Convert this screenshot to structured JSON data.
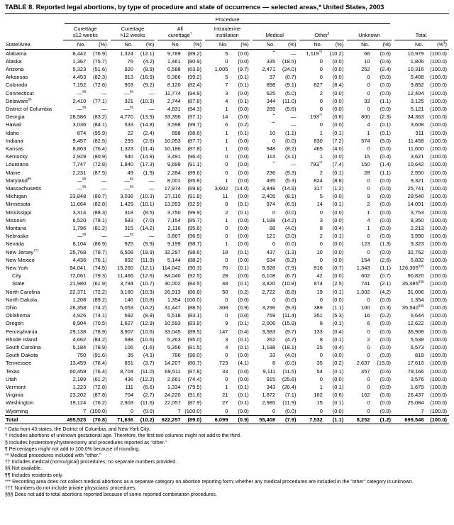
{
  "title": "TABLE 8. Reported legal abortions, by type of procedure and state of occurrence — selected areas,* United States, 2003",
  "header": {
    "procedure": "Procedure",
    "state_area": "State/Area",
    "groups": [
      {
        "label": "Curettage\n≤12 weeks",
        "no": "No.",
        "pct": "(%)"
      },
      {
        "label": "Curettage\n>12 weeks",
        "no": "No.",
        "pct": "(%)"
      },
      {
        "label": "All\ncurettage†",
        "no": "No.",
        "pct": "(%)"
      },
      {
        "label": "Intrauterine\ninstillation",
        "no": "No.",
        "pct": "(%)"
      },
      {
        "label": "Medical",
        "no": "No.",
        "pct": "(%)"
      },
      {
        "label": "Other§",
        "no": "No.",
        "pct": "(%)"
      },
      {
        "label": "Unknown",
        "no": "No.",
        "pct": "(%)"
      },
      {
        "label": "Total",
        "no": "No.",
        "pct": "(%¶)"
      }
    ]
  },
  "rows": [
    {
      "state": "Alabama",
      "c": [
        "8,442",
        "(76.9)",
        "1,324",
        "(12.1)",
        "9,789",
        "(89.2)",
        "5",
        "(0.0)",
        "**",
        "—",
        "1,119††",
        "(10.2)",
        "66",
        "(0.6)",
        "10,979",
        "(100.0)"
      ]
    },
    {
      "state": "Alaska",
      "c": [
        "1,367",
        "(75.7)",
        "76",
        "(4.2)",
        "1,461",
        "(80.9)",
        "0",
        "(0.0)",
        "335",
        "(18.5)",
        "0",
        "(0.0)",
        "10",
        "(0.6)",
        "1,806",
        "(100.0)"
      ]
    },
    {
      "state": "Arizona",
      "c": [
        "5,323",
        "(51.6)",
        "920",
        "(8.9)",
        "6,588",
        "(63.9)",
        "1,005",
        "(9.7)",
        "2,471",
        "(24.0)",
        "0",
        "(0.0)",
        "252",
        "(2.4)",
        "10,316",
        "(100.0)"
      ]
    },
    {
      "state": "Arkansas",
      "c": [
        "4,453",
        "(82.3)",
        "913",
        "(16.9)",
        "5,366",
        "(99.2)",
        "5",
        "(0.1)",
        "37",
        "(0.7)",
        "0",
        "(0.0)",
        "0",
        "(0.0)",
        "5,408",
        "(100.0)"
      ]
    },
    {
      "state": "Colorado",
      "c": [
        "7,152",
        "(72.6)",
        "903",
        "(9.2)",
        "8,120",
        "(82.4)",
        "7",
        "(0.1)",
        "898",
        "(9.1)",
        "827",
        "(8.4)",
        "0",
        "(0.0)",
        "9,852",
        "(100.0)"
      ]
    },
    {
      "state": "Connecticut",
      "c": [
        "—§§",
        "—",
        "—§§",
        "—",
        "11,774",
        "(94.9)",
        "3",
        "(0.0)",
        "625",
        "(5.0)",
        "2",
        "(0.0)",
        "0",
        "(0.0)",
        "12,404",
        "(100.0)"
      ]
    },
    {
      "state": "Delaware¶¶",
      "c": [
        "2,410",
        "(77.1)",
        "321",
        "(10.3)",
        "2,744",
        "(87.8)",
        "4",
        "(0.1)",
        "344",
        "(11.0)",
        "0",
        "(0.0)",
        "33",
        "(1.1)",
        "3,125",
        "(100.0)"
      ]
    },
    {
      "state": "District of Columbia",
      "c": [
        "—§§",
        "—",
        "—§§",
        "—",
        "4,831",
        "(94.3)",
        "1",
        "(0.0)",
        "289",
        "(5.6)",
        "0",
        "(0.0)",
        "0",
        "(0.0)",
        "5,121",
        "(100.0)"
      ]
    },
    {
      "state": "Georgia",
      "c": [
        "28,586",
        "(83.2)",
        "4,770",
        "(13.9)",
        "33,356",
        "(97.1)",
        "14",
        "(0.0)",
        "**",
        "—",
        "193††",
        "(0.6)",
        "800",
        "(2.3)",
        "34,363",
        "(100.0)"
      ]
    },
    {
      "state": "Hawaii",
      "c": [
        "3,036",
        "(84.1)",
        "533",
        "(14.8)",
        "3,598",
        "(99.7)",
        "6",
        "(0.2)",
        "***",
        "—",
        "0",
        "(0.0)",
        "4",
        "(0.1)",
        "3,608",
        "(100.0)"
      ]
    },
    {
      "state": "Idaho",
      "c": [
        "874",
        "(95.9)",
        "22",
        "(2.4)",
        "898",
        "(98.6)",
        "1",
        "(0.1)",
        "10",
        "(1.1)",
        "1",
        "(0.1)",
        "1",
        "(0.1)",
        "911",
        "(100.0)"
      ]
    },
    {
      "state": "Indiana",
      "c": [
        "9,457",
        "(82.5)",
        "293",
        "(2.6)",
        "10,053",
        "(87.7)",
        "1",
        "(0.0)",
        "0",
        "(0.0)",
        "830",
        "(7.2)",
        "574",
        "(5.0)",
        "11,458",
        "(100.0)"
      ]
    },
    {
      "state": "Kansas",
      "c": [
        "8,863",
        "(76.4)",
        "1,323",
        "(11.4)",
        "10,186",
        "(87.8)",
        "1",
        "(0.0)",
        "948",
        "(8.2)",
        "465",
        "(4.0)",
        "0",
        "(0.0)",
        "11,600",
        "(100.0)"
      ]
    },
    {
      "state": "Kentucky",
      "c": [
        "2,929",
        "(80.9)",
        "540",
        "(14.9)",
        "3,491",
        "(96.4)",
        "0",
        "(0.0)",
        "114",
        "(3.1)",
        "1",
        "(0.0)",
        "15",
        "(0.4)",
        "3,621",
        "(100.0)"
      ]
    },
    {
      "state": "Louisiana",
      "c": [
        "7,747",
        "(72.8)",
        "1,840",
        "(17.3)",
        "9,699",
        "(91.1)",
        "0",
        "(0.0)",
        "**",
        "—",
        "793††",
        "(7.4)",
        "150",
        "(1.4)",
        "10,642",
        "(100.0)"
      ]
    },
    {
      "state": "Maine",
      "c": [
        "2,231",
        "(87.5)",
        "49",
        "(1.9)",
        "2,284",
        "(89.6)",
        "0",
        "(0.0)",
        "236",
        "(9.3)",
        "2",
        "(0.1)",
        "28",
        "(1.1)",
        "2,550",
        "(100.0)"
      ]
    },
    {
      "state": "Maryland¶¶",
      "c": [
        "—§§",
        "—",
        "—§§",
        "—",
        "8,001",
        "(85.8)",
        "1",
        "(0.0)",
        "495",
        "(5.3)",
        "824",
        "(8.8)",
        "0",
        "(0.0)",
        "9,321",
        "(100.0)"
      ]
    },
    {
      "state": "Massachusetts",
      "c": [
        "—§§",
        "—",
        "—§§",
        "—",
        "17,974",
        "(69.8)",
        "3,602",
        "(14.0)",
        "3,848",
        "(14.9)",
        "317",
        "(1.2)",
        "0",
        "(0.0)",
        "25,741",
        "(100.0)"
      ]
    },
    {
      "state": "Michigan",
      "c": [
        "23,848",
        "(80.7)",
        "3,036",
        "(10.3)",
        "27,110",
        "(91.8)",
        "11",
        "(0.0)",
        "2,405",
        "(8.1)",
        "5",
        "(0.0)",
        "9",
        "(0.0)",
        "29,540",
        "(100.0)"
      ]
    },
    {
      "state": "Minnesota",
      "c": [
        "11,664",
        "(82.8)",
        "1,429",
        "(10.1)",
        "13,093",
        "(92.9)",
        "8",
        "(0.1)",
        "974",
        "(6.9)",
        "14",
        "(0.1)",
        "2",
        "(0.0)",
        "14,091",
        "(100.0)"
      ]
    },
    {
      "state": "Mississippi",
      "c": [
        "3,314",
        "(88.3)",
        "318",
        "(8.5)",
        "3,750",
        "(99.9)",
        "2",
        "(0.1)",
        "0",
        "(0.0)",
        "0",
        "(0.0)",
        "1",
        "(0.0)",
        "3,753",
        "(100.0)"
      ]
    },
    {
      "state": "Missouri",
      "c": [
        "6,520",
        "(78.1)",
        "583",
        "(7.0)",
        "7,154",
        "(85.7)",
        "1",
        "(0.0)",
        "1,188",
        "(14.2)",
        "3",
        "(0.0)",
        "4",
        "(0.0)",
        "8,350",
        "(100.0)"
      ]
    },
    {
      "state": "Montana",
      "c": [
        "1,796",
        "(81.2)",
        "315",
        "(14.2)",
        "2,116",
        "(95.6)",
        "0",
        "(0.0)",
        "88",
        "(4.0)",
        "8",
        "(0.4)",
        "1",
        "(0.0)",
        "2,213",
        "(100.0)"
      ]
    },
    {
      "state": "Nebraska",
      "c": [
        "—§§",
        "—",
        "—§§",
        "—",
        "3,867",
        "(96.9)",
        "0",
        "(0.0)",
        "121",
        "(3.0)",
        "2",
        "(0.1)",
        "0",
        "(0.0)",
        "3,990",
        "(100.0)"
      ]
    },
    {
      "state": "Nevada",
      "c": [
        "8,104",
        "(86.9)",
        "925",
        "(9.9)",
        "9,199",
        "(98.7)",
        "1",
        "(0.0)",
        "0",
        "(0.0)",
        "0",
        "(0.0)",
        "123",
        "(1.3)",
        "9,323",
        "(100.0)"
      ]
    },
    {
      "state": "New Jersey†††",
      "c": [
        "25,768",
        "(78.7)",
        "6,508",
        "(19.9)",
        "32,297",
        "(98.6)",
        "18",
        "(0.1)",
        "437",
        "(1.3)",
        "10",
        "(0.0)",
        "0",
        "(0.0)",
        "32,762",
        "(100.0)"
      ]
    },
    {
      "state": "New Mexico",
      "c": [
        "4,436",
        "(76.1)",
        "692",
        "(11.9)",
        "5,144",
        "(88.2)",
        "0",
        "(0.0)",
        "534",
        "(9.2)",
        "0",
        "(0.0)",
        "154",
        "(2.6)",
        "5,832",
        "(100.0)"
      ]
    },
    {
      "state": "New York",
      "c": [
        "94,041",
        "(74.5)",
        "15,260",
        "(12.1)",
        "114,042",
        "(90.3)",
        "76",
        "(0.1)",
        "9,928",
        "(7.9)",
        "916",
        "(0.7)",
        "1,343",
        "(1.1)",
        "126,305§§§",
        "(100.0)"
      ]
    },
    {
      "state": "City",
      "indent": true,
      "c": [
        "72,061",
        "(79.3)",
        "11,466",
        "(12.6)",
        "84,040",
        "(92.5)",
        "28",
        "(0.0)",
        "6,108",
        "(6.7)",
        "42",
        "(0.0)",
        "602",
        "(0.7)",
        "90,820",
        "(100.0)"
      ]
    },
    {
      "state": "State",
      "indent": true,
      "c": [
        "21,980",
        "(61.9)",
        "3,794",
        "(10.7)",
        "30,002",
        "(84.5)",
        "48",
        "(0.1)",
        "3,820",
        "(10.8)",
        "874",
        "(2.5)",
        "741",
        "(2.1)",
        "35,485§§§",
        "(100.0)"
      ]
    },
    {
      "state": "North Carolina",
      "c": [
        "22,371",
        "(72.2)",
        "3,180",
        "(10.3)",
        "26,913",
        "(86.8)",
        "50",
        "(0.2)",
        "2,722",
        "(8.8)",
        "19",
        "(0.1)",
        "1,302",
        "(4.2)",
        "31,006",
        "(100.0)"
      ]
    },
    {
      "state": "North Dakota",
      "c": [
        "1,208",
        "(89.2)",
        "146",
        "(10.8)",
        "1,354",
        "(100.0)",
        "0",
        "(0.0)",
        "0",
        "(0.0)",
        "0",
        "(0.0)",
        "0",
        "(0.0)",
        "1,354",
        "(100.0)"
      ]
    },
    {
      "state": "Ohio",
      "c": [
        "26,358",
        "(74.2)",
        "5,053",
        "(14.2)",
        "31,447",
        "(88.5)",
        "308",
        "(0.9)",
        "3,296",
        "(9.3)",
        "389",
        "(1.1)",
        "100",
        "(0.3)",
        "35,540§§§",
        "(100.0)"
      ]
    },
    {
      "state": "Oklahoma",
      "c": [
        "4,926",
        "(74.1)",
        "592",
        "(8.9)",
        "5,518",
        "(83.1)",
        "0",
        "(0.0)",
        "759",
        "(11.4)",
        "351",
        "(5.3)",
        "16",
        "(0.2)",
        "6,644",
        "(100.0)"
      ]
    },
    {
      "state": "Oregon",
      "c": [
        "8,904",
        "(70.5)",
        "1,627",
        "(12.9)",
        "10,593",
        "(83.9)",
        "9",
        "(0.1)",
        "2,006",
        "(15.9)",
        "8",
        "(0.1)",
        "6",
        "(0.0)",
        "12,622",
        "(100.0)"
      ]
    },
    {
      "state": "Pennsylvania",
      "c": [
        "29,138",
        "(78.9)",
        "3,907",
        "(10.6)",
        "33,045",
        "(89.5)",
        "147",
        "(0.4)",
        "3,583",
        "(9.7)",
        "133",
        "(0.4)",
        "0",
        "(0.0)",
        "36,908",
        "(100.0)"
      ]
    },
    {
      "state": "Rhode Island",
      "c": [
        "4,662",
        "(84.2)",
        "588",
        "(10.6)",
        "5,263",
        "(95.0)",
        "3",
        "(0.1)",
        "262",
        "(4.7)",
        "8",
        "(0.1)",
        "2",
        "(0.0)",
        "5,538",
        "(100.0)"
      ]
    },
    {
      "state": "South Carolina",
      "c": [
        "5,184",
        "(78.9)",
        "106",
        "(1.6)",
        "5,356",
        "(81.5)",
        "4",
        "(0.1)",
        "1,188",
        "(18.1)",
        "25",
        "(0.4)",
        "0",
        "(0.0)",
        "6,573",
        "(100.0)"
      ]
    },
    {
      "state": "South Dakota",
      "c": [
        "750",
        "(91.6)",
        "35",
        "(4.3)",
        "786",
        "(96.0)",
        "0",
        "(0.0)",
        "33",
        "(4.0)",
        "0",
        "(0.0)",
        "0",
        "(0.0)",
        "819",
        "(100.0)"
      ]
    },
    {
      "state": "Tennessee",
      "c": [
        "13,459",
        "(76.4)",
        "651",
        "(3.7)",
        "14,207",
        "(80.7)",
        "723",
        "(4.1)",
        "8",
        "(0.0)",
        "35",
        "(0.2)",
        "2,637",
        "(15.0)",
        "17,610",
        "(100.0)"
      ]
    },
    {
      "state": "Texas",
      "c": [
        "60,459",
        "(76.4)",
        "8,704",
        "(11.0)",
        "69,511",
        "(87.8)",
        "33",
        "(0.0)",
        "9,111",
        "(11.5)",
        "54",
        "(0.1)",
        "457",
        "(0.6)",
        "79,166",
        "(100.0)"
      ]
    },
    {
      "state": "Utah",
      "c": [
        "2,189",
        "(61.2)",
        "436",
        "(12.2)",
        "2,661",
        "(74.4)",
        "0",
        "(0.0)",
        "915",
        "(25.6)",
        "0",
        "(0.0)",
        "0",
        "(0.0)",
        "3,576",
        "(100.0)"
      ]
    },
    {
      "state": "Vermont",
      "c": [
        "1,223",
        "(72.8)",
        "111",
        "(6.6)",
        "1,334",
        "(79.5)",
        "1",
        "(0.1)",
        "343",
        "(20.4)",
        "1",
        "(0.1)",
        "0",
        "(0.0)",
        "1,679",
        "(100.0)"
      ]
    },
    {
      "state": "Virginia",
      "c": [
        "23,202",
        "(87.8)",
        "704",
        "(2.7)",
        "24,220",
        "(91.6)",
        "21",
        "(0.1)",
        "1,872",
        "(7.1)",
        "162",
        "(0.6)",
        "162",
        "(0.6)",
        "26,437",
        "(100.0)"
      ]
    },
    {
      "state": "Washington",
      "c": [
        "19,124",
        "(76.2)",
        "2,903",
        "(11.6)",
        "22,057",
        "(87.9)",
        "27",
        "(0.1)",
        "2,985",
        "(11.9)",
        "15",
        "(0.1)",
        "0",
        "(0.0)",
        "25,084",
        "(100.0)"
      ]
    },
    {
      "state": "Wyoming",
      "c": [
        "7",
        "(100.0)",
        "0",
        "(0.0)",
        "7",
        "(100.0)",
        "0",
        "(0.0)",
        "0",
        "(0.0)",
        "0",
        "(0.0)",
        "0",
        "(0.0)",
        "7",
        "(100.0)"
      ]
    },
    {
      "state": "Total",
      "total": true,
      "c": [
        "495,525",
        "(70.8)",
        "71,636",
        "(10.2)",
        "622,257",
        "(89.0)",
        "6,099",
        "(0.9)",
        "55,408",
        "(7.9)",
        "7,532",
        "(1.1)",
        "8,252",
        "(1.2)",
        "699,548",
        "(100.0)"
      ]
    }
  ],
  "footnotes": [
    {
      "marker": "*",
      "text": "Data from 43 states, the District of Columbia, and New York City."
    },
    {
      "marker": "†",
      "text": "Includes abortions of unknown gestational age. Therefore, the first two columns might not add to the third."
    },
    {
      "marker": "§",
      "text": "Includes hysterotomy/hysterectomy and procedures reported as \"other.\""
    },
    {
      "marker": "¶",
      "text": "Percentages might not add to 100.0% because of rounding."
    },
    {
      "marker": "**",
      "text": "Medical procedures included with \"other.\""
    },
    {
      "marker": "††",
      "text": "Includes medical (nonsurgical) procedures; no separate numbers provided."
    },
    {
      "marker": "§§",
      "text": "Not available."
    },
    {
      "marker": "¶¶",
      "text": "Includes residents only."
    },
    {
      "marker": "***",
      "text": "Recording area does not collect medical abortions as a separate category on abortion reporting form; whether any medical procedures are included in the \"other\" category is unknown."
    },
    {
      "marker": "†††",
      "text": "Numbers do not include private physicians' procedures."
    },
    {
      "marker": "§§§",
      "text": "Does not add to total abortions reported because of some reported combination procedures."
    }
  ]
}
